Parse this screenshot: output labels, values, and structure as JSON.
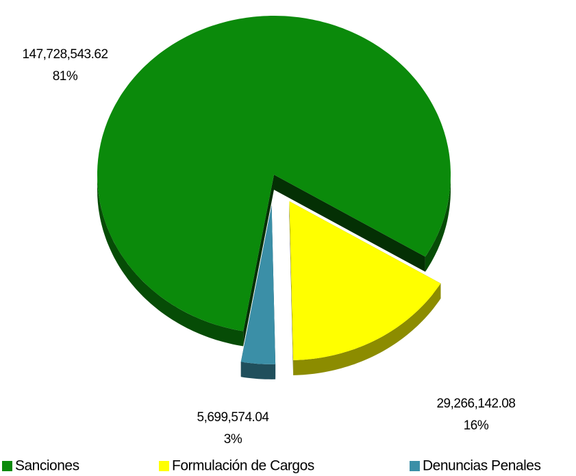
{
  "chart_data": {
    "type": "pie",
    "three_d": true,
    "categories": [
      "Sanciones",
      "Formulación de Cargos",
      "Denuncias Penales"
    ],
    "values": [
      147728543.62,
      29266142.08,
      5699574.04
    ],
    "value_labels": [
      "147,728,543.62",
      "29,266,142.08",
      "5,699,574.04"
    ],
    "percents": [
      {
        "value": 81,
        "label": "81%"
      },
      {
        "value": 16,
        "label": "16%"
      },
      {
        "value": 3,
        "label": "3%"
      }
    ],
    "colors": [
      "#0b8a0b",
      "#ffff00",
      "#3b8fa7"
    ],
    "exploded": [
      false,
      true,
      true
    ],
    "legend": "bottom"
  }
}
